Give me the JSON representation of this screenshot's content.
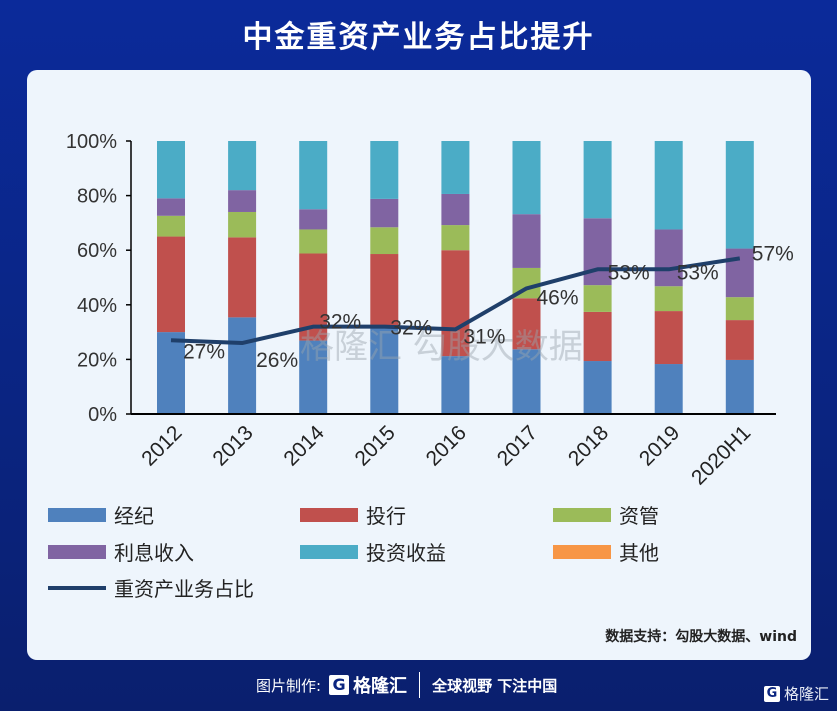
{
  "title": "中金重资产业务占比提升",
  "chart_data": {
    "type": "bar+line",
    "stacked": true,
    "categories": [
      "2012",
      "2013",
      "2014",
      "2015",
      "2016",
      "2017",
      "2018",
      "2019",
      "2020H1"
    ],
    "ylim": [
      0,
      100
    ],
    "yticks": [
      "0%",
      "20%",
      "40%",
      "60%",
      "80%",
      "100%"
    ],
    "grid": false,
    "legend_position": "bottom",
    "series": [
      {
        "name": "经纪",
        "color": "#4f81bd",
        "values": [
          30,
          35.4,
          26.9,
          32.6,
          21.2,
          23.7,
          19.4,
          18.3,
          19.8
        ]
      },
      {
        "name": "投行",
        "color": "#c0504d",
        "values": [
          35,
          29.3,
          31.9,
          26,
          38.8,
          18.7,
          18,
          19.4,
          14.6
        ]
      },
      {
        "name": "资管",
        "color": "#9bbb59",
        "values": [
          7.6,
          9.3,
          8.8,
          9.8,
          9.2,
          11.1,
          9.8,
          9.1,
          8.4
        ]
      },
      {
        "name": "利息收入",
        "color": "#8064a2",
        "values": [
          6.4,
          8,
          7.4,
          10.4,
          11.4,
          19.7,
          24.5,
          20.8,
          17.8
        ]
      },
      {
        "name": "投资收益",
        "color": "#4bacc6",
        "values": [
          21,
          18,
          25,
          21.2,
          19.4,
          26.8,
          28.3,
          32.4,
          39.4
        ]
      },
      {
        "name": "其他",
        "color": "#f79646",
        "values": [
          0,
          0,
          0,
          0,
          0,
          0,
          0,
          0,
          0
        ]
      }
    ],
    "line": {
      "name": "重资产业务占比",
      "color": "#1f3f6a",
      "values": [
        27,
        26,
        32,
        32,
        31,
        46,
        53,
        53,
        57
      ],
      "labels": [
        "27%",
        "26%",
        "32%",
        "32%",
        "31%",
        "46%",
        "53%",
        "53%",
        "57%"
      ]
    }
  },
  "watermark": "格隆汇 勾股大数据",
  "source": "数据支持：勾股大数据、wind",
  "footer": {
    "made_by": "图片制作:",
    "logo": "格隆汇",
    "slogan": "全球视野 下注中国",
    "corner_logo": "格隆汇"
  }
}
